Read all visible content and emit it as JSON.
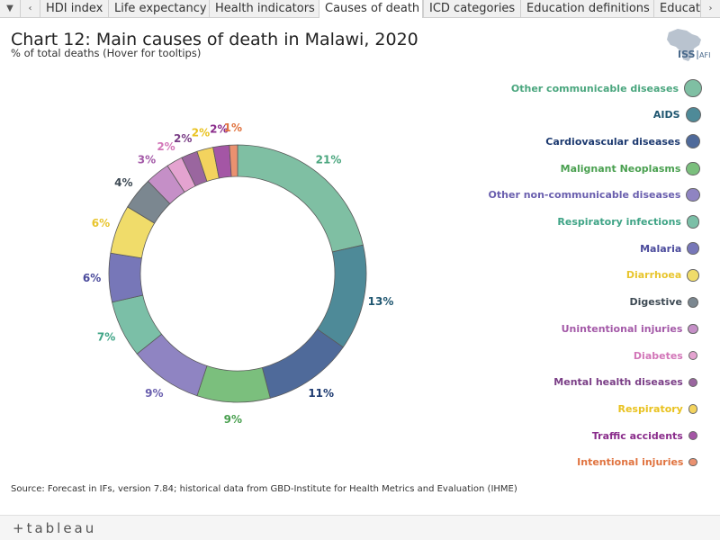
{
  "tabs": [
    "HDI index",
    "Life expectancy",
    "Health indicators",
    "Causes of death",
    "ICD categories",
    "Education definitions",
    "Educat"
  ],
  "active_tab": "Causes of death",
  "title": "Chart 12: Main causes of death in Malawi, 2020",
  "subtitle": "% of total deaths (Hover for tooltips)",
  "logo": {
    "text_main": "ISS",
    "text_sub": "AFI"
  },
  "source": "Source: Forecast in IFs, version 7.84; historical data from GBD-Institute for Health Metrics and Evaluation (IHME)",
  "footer": {
    "brand": "+tableau"
  },
  "chart_data": {
    "type": "pie",
    "donut": true,
    "categories": [
      "Other communicable diseases",
      "AIDS",
      "Cardiovascular diseases",
      "Malignant Neoplasms",
      "Other non-communicable diseases",
      "Respiratory infections",
      "Malaria",
      "Diarrhoea",
      "Digestive",
      "Unintentional injuries",
      "Diabetes",
      "Mental health diseases",
      "Respiratory",
      "Traffic accidents",
      "Intentional injuries"
    ],
    "values": [
      21,
      13,
      11,
      9,
      9,
      7,
      6,
      6,
      4,
      3,
      2,
      2,
      2,
      2,
      1
    ],
    "labels": [
      "21%",
      "13%",
      "11%",
      "9%",
      "9%",
      "7%",
      "6%",
      "6%",
      "4%",
      "3%",
      "2%",
      "2%",
      "2%",
      "2%",
      "1%"
    ],
    "colors": [
      "#7fbfa3",
      "#4e8a98",
      "#4f6a9a",
      "#7bbf7d",
      "#8f84c2",
      "#7bbfa7",
      "#7777b8",
      "#f0dc6a",
      "#7b8790",
      "#c58fc7",
      "#e4a3d0",
      "#9a669f",
      "#f3d35e",
      "#a456a5",
      "#ea9170"
    ],
    "label_colors": [
      "#4aa67e",
      "#1f5670",
      "#1d3a70",
      "#4aa050",
      "#6a5fae",
      "#3fa486",
      "#4b4b9c",
      "#e8c52e",
      "#3e4a54",
      "#a45aa8",
      "#d276b8",
      "#7a3e86",
      "#e9c21f",
      "#8a2c8b",
      "#e0733f"
    ],
    "legend_position": "right"
  }
}
